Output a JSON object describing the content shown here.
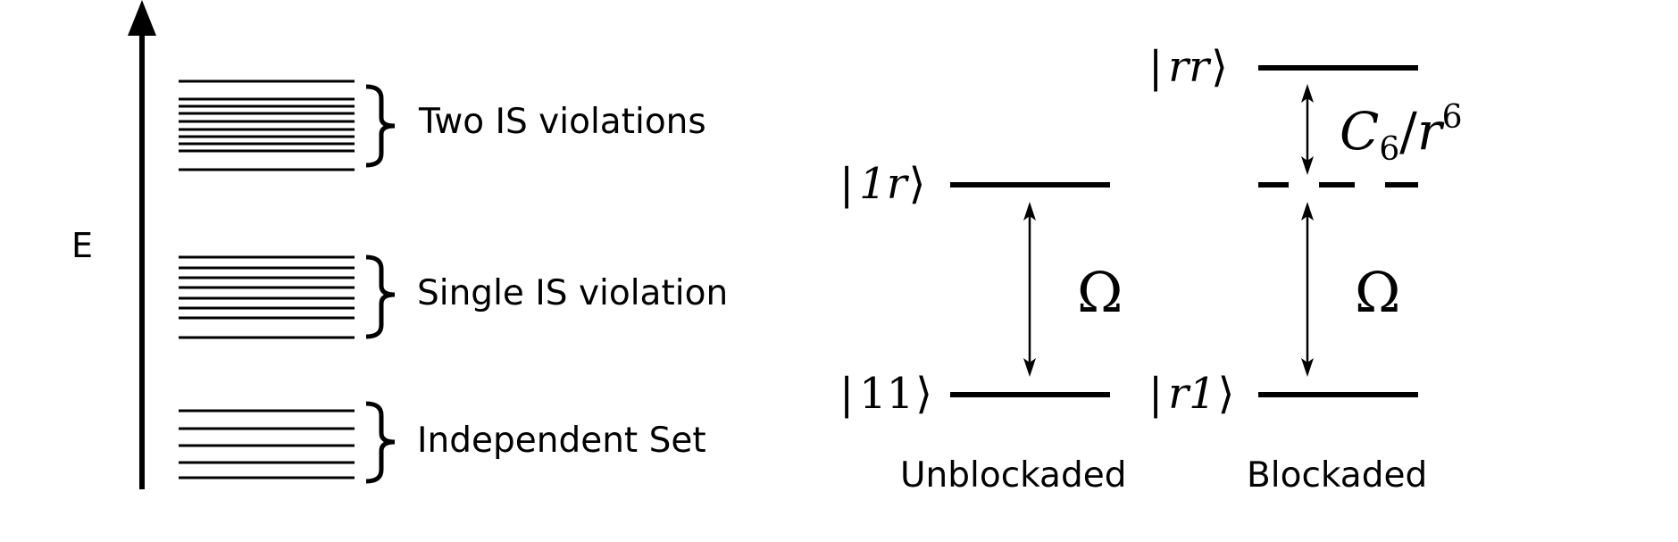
{
  "energy_axis": {
    "label": "E"
  },
  "bands": [
    {
      "label": "Two IS violations"
    },
    {
      "label": "Single IS violation"
    },
    {
      "label": "Independent Set"
    }
  ],
  "unblockaded": {
    "caption": "Unblockaded",
    "upper_state": {
      "bra": "|",
      "name": "1r",
      "ket": "⟩"
    },
    "lower_state": {
      "bra": "|",
      "name": "11",
      "ket": "⟩"
    },
    "coupling": "Ω"
  },
  "blockaded": {
    "caption": "Blockaded",
    "upper_state": {
      "bra": "|",
      "name": "rr",
      "ket": "⟩"
    },
    "lower_state": {
      "bra": "|",
      "name": "r1",
      "ket": "⟩"
    },
    "coupling": "Ω",
    "shift": {
      "coef": "C",
      "coef_sub": "6",
      "slash": "/",
      "var": "r",
      "var_sup": "6"
    }
  }
}
